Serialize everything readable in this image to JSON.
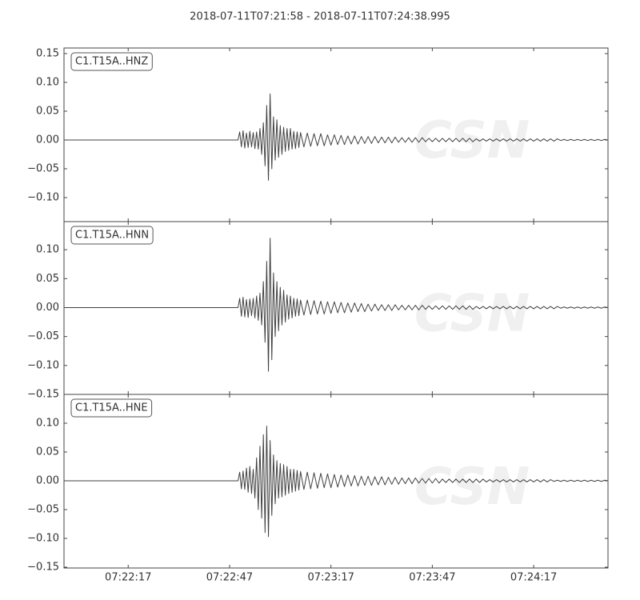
{
  "title": "2018-07-11T07:21:58  -  2018-07-11T07:24:38.995",
  "watermark": "CSN",
  "chart_data": [
    {
      "type": "line",
      "series": [
        {
          "name": "C1.T15A..HNZ",
          "color": "#404040",
          "values": [
            0,
            0,
            0.014,
            -0.012,
            0.016,
            -0.014,
            0.012,
            -0.013,
            0.015,
            -0.012,
            0.013,
            -0.015,
            0.014,
            -0.016,
            0.02,
            -0.025,
            0.03,
            -0.045,
            0.06,
            -0.07,
            0.08,
            -0.05,
            0.04,
            -0.035,
            0.035,
            -0.03,
            0.025,
            -0.025,
            0.022,
            -0.02,
            0.02,
            -0.018,
            0.02,
            -0.016,
            0.015,
            -0.015,
            0.014,
            -0.013,
            0.013,
            -0.012,
            0.012,
            -0.011,
            0.011,
            -0.01,
            0.011,
            -0.01,
            0.009,
            -0.009,
            0.009,
            -0.008,
            0.008,
            -0.008,
            0.007,
            -0.007,
            0.007,
            -0.007,
            0.006,
            -0.006,
            0.006,
            -0.006,
            0.006,
            -0.005,
            0.005,
            -0.005,
            0.005,
            -0.005,
            0.005,
            -0.004,
            0.004,
            -0.004,
            0.004,
            -0.004,
            0.004,
            -0.004,
            0.004,
            -0.003,
            0.003,
            -0.003,
            0.003,
            -0.003,
            0.003,
            -0.003,
            0.003,
            -0.003,
            0.003,
            -0.003,
            0.003,
            -0.003,
            0.003,
            -0.003,
            0.002,
            -0.002,
            0.002,
            -0.002,
            0.002,
            -0.002,
            0.002,
            -0.002,
            0.002,
            -0.002,
            0.002,
            -0.002,
            0.002,
            -0.002,
            0.002,
            -0.002,
            0.002,
            -0.002,
            0.002,
            -0.002,
            0.002,
            -0.002,
            0.002,
            -0.002,
            0.002,
            -0.001,
            0.001,
            -0.001,
            0.001,
            -0.001,
            0.001,
            -0.001,
            0.001,
            -0.001,
            0.001,
            -0.001,
            0.001,
            -0.001,
            0.001,
            0
          ]
        }
      ],
      "x": [
        0,
        51.5,
        52,
        52.5,
        53,
        53.5,
        54,
        54.5,
        55,
        55.5,
        56,
        56.5,
        57,
        57.5,
        58,
        58.5,
        59,
        59.5,
        60,
        60.5,
        61,
        61.5,
        62,
        62.5,
        63,
        63.5,
        64,
        64.5,
        65,
        65.5,
        66,
        66.5,
        67,
        67.5,
        68,
        68.5,
        69,
        69.5,
        70,
        71,
        72,
        73,
        74,
        75,
        76,
        77,
        78,
        79,
        80,
        81,
        82,
        83,
        84,
        85,
        86,
        87,
        88,
        89,
        90,
        91,
        92,
        93,
        94,
        95,
        96,
        97,
        98,
        99,
        100,
        101,
        102,
        103,
        104,
        105,
        106,
        107,
        108,
        109,
        110,
        111,
        112,
        113,
        114,
        115,
        116,
        117,
        118,
        119,
        120,
        121,
        122,
        123,
        124,
        125,
        126,
        127,
        128,
        129,
        130,
        131,
        132,
        133,
        134,
        135,
        136,
        137,
        138,
        139,
        140,
        141,
        142,
        143,
        144,
        145,
        146,
        147,
        148,
        149,
        150,
        151,
        152,
        153,
        154,
        155,
        156,
        157,
        158,
        159,
        160,
        160.995
      ],
      "xlim": [
        0,
        160.995
      ],
      "ylim": [
        -0.1417,
        0.1597
      ],
      "yticks": [
        {
          "value": 0.15,
          "label": "0.15"
        },
        {
          "value": 0.1,
          "label": "0.10"
        },
        {
          "value": 0.05,
          "label": "0.05"
        },
        {
          "value": 0,
          "label": "0.00"
        },
        {
          "value": -0.05,
          "label": "−0.05"
        },
        {
          "value": -0.1,
          "label": "−0.10"
        }
      ]
    },
    {
      "type": "line",
      "series": [
        {
          "name": "C1.T15A..HNN",
          "color": "#404040",
          "values": [
            0,
            0,
            0.016,
            -0.015,
            0.018,
            -0.016,
            0.014,
            -0.017,
            0.015,
            -0.014,
            0.016,
            -0.018,
            0.02,
            -0.022,
            0.025,
            -0.03,
            0.045,
            -0.06,
            0.08,
            -0.11,
            0.12,
            -0.09,
            0.06,
            -0.05,
            0.045,
            -0.04,
            0.035,
            -0.03,
            0.03,
            -0.025,
            0.022,
            -0.02,
            0.02,
            -0.018,
            0.016,
            -0.015,
            0.015,
            -0.014,
            0.013,
            -0.013,
            0.013,
            -0.012,
            0.012,
            -0.011,
            0.011,
            -0.011,
            0.01,
            -0.01,
            0.01,
            -0.009,
            0.009,
            -0.009,
            0.008,
            -0.008,
            0.008,
            -0.007,
            0.007,
            -0.007,
            0.006,
            -0.006,
            0.006,
            -0.005,
            0.005,
            -0.005,
            0.005,
            -0.005,
            0.005,
            -0.004,
            0.004,
            -0.004,
            0.004,
            -0.004,
            0.004,
            -0.004,
            0.004,
            -0.003,
            0.003,
            -0.003,
            0.003,
            -0.003,
            0.003,
            -0.003,
            0.003,
            -0.003,
            0.003,
            -0.003,
            0.003,
            -0.003,
            0.003,
            -0.003,
            0.002,
            -0.002,
            0.002,
            -0.002,
            0.002,
            -0.002,
            0.002,
            -0.002,
            0.002,
            -0.002,
            0.002,
            -0.002,
            0.002,
            -0.002,
            0.002,
            -0.002,
            0.002,
            -0.002,
            0.002,
            -0.002,
            0.002,
            -0.002,
            0.002,
            -0.002,
            0.002,
            -0.001,
            0.001,
            -0.001,
            0.001,
            -0.001,
            0.001,
            -0.001,
            0.001,
            -0.001,
            0.001,
            -0.001,
            0.001,
            -0.001,
            0.001,
            0
          ]
        }
      ],
      "x": [
        0,
        51.5,
        52,
        52.5,
        53,
        53.5,
        54,
        54.5,
        55,
        55.5,
        56,
        56.5,
        57,
        57.5,
        58,
        58.5,
        59,
        59.5,
        60,
        60.5,
        61,
        61.5,
        62,
        62.5,
        63,
        63.5,
        64,
        64.5,
        65,
        65.5,
        66,
        66.5,
        67,
        67.5,
        68,
        68.5,
        69,
        69.5,
        70,
        71,
        72,
        73,
        74,
        75,
        76,
        77,
        78,
        79,
        80,
        81,
        82,
        83,
        84,
        85,
        86,
        87,
        88,
        89,
        90,
        91,
        92,
        93,
        94,
        95,
        96,
        97,
        98,
        99,
        100,
        101,
        102,
        103,
        104,
        105,
        106,
        107,
        108,
        109,
        110,
        111,
        112,
        113,
        114,
        115,
        116,
        117,
        118,
        119,
        120,
        121,
        122,
        123,
        124,
        125,
        126,
        127,
        128,
        129,
        130,
        131,
        132,
        133,
        134,
        135,
        136,
        137,
        138,
        139,
        140,
        141,
        142,
        143,
        144,
        145,
        146,
        147,
        148,
        149,
        150,
        151,
        152,
        153,
        154,
        155,
        156,
        157,
        158,
        159,
        160,
        160.995
      ],
      "xlim": [
        0,
        160.995
      ],
      "ylim": [
        -0.15,
        0.1486
      ],
      "yticks": [
        {
          "value": 0.1,
          "label": "0.10"
        },
        {
          "value": 0.05,
          "label": "0.05"
        },
        {
          "value": 0,
          "label": "0.00"
        },
        {
          "value": -0.05,
          "label": "−0.05"
        },
        {
          "value": -0.1,
          "label": "−0.10"
        },
        {
          "value": -0.15,
          "label": "−0.15"
        }
      ]
    },
    {
      "type": "line",
      "series": [
        {
          "name": "C1.T15A..HNE",
          "color": "#404040",
          "values": [
            0,
            0,
            0.015,
            -0.014,
            0.017,
            -0.015,
            0.022,
            -0.02,
            0.025,
            -0.022,
            0.02,
            -0.03,
            0.04,
            -0.05,
            0.06,
            -0.065,
            0.08,
            -0.09,
            0.095,
            -0.097,
            0.07,
            -0.06,
            0.045,
            -0.04,
            0.035,
            -0.03,
            0.03,
            -0.028,
            0.028,
            -0.025,
            0.025,
            -0.022,
            0.02,
            -0.02,
            0.02,
            -0.018,
            0.018,
            -0.016,
            0.016,
            -0.015,
            0.015,
            -0.014,
            0.014,
            -0.013,
            0.013,
            -0.012,
            0.012,
            -0.012,
            0.011,
            -0.011,
            0.01,
            -0.01,
            0.01,
            -0.009,
            0.009,
            -0.009,
            0.008,
            -0.008,
            0.008,
            -0.008,
            0.007,
            -0.007,
            0.007,
            -0.007,
            0.006,
            -0.006,
            0.006,
            -0.006,
            0.005,
            -0.005,
            0.005,
            -0.005,
            0.005,
            -0.004,
            0.004,
            -0.004,
            0.004,
            -0.004,
            0.004,
            -0.004,
            0.003,
            -0.003,
            0.003,
            -0.003,
            0.003,
            -0.003,
            0.003,
            -0.003,
            0.003,
            -0.003,
            0.003,
            -0.003,
            0.003,
            -0.002,
            0.002,
            -0.002,
            0.002,
            -0.002,
            0.002,
            -0.002,
            0.002,
            -0.002,
            0.002,
            -0.002,
            0.002,
            -0.002,
            0.002,
            -0.002,
            0.002,
            -0.002,
            0.002,
            -0.002,
            0.002,
            -0.001,
            0.001,
            -0.001,
            0.001,
            -0.001,
            0.001,
            -0.001,
            0.001,
            -0.001,
            0.001,
            -0.001,
            0.001,
            -0.001,
            0.001,
            -0.001,
            0.001,
            0
          ]
        }
      ],
      "x": [
        0,
        51.5,
        52,
        52.5,
        53,
        53.5,
        54,
        54.5,
        55,
        55.5,
        56,
        56.5,
        57,
        57.5,
        58,
        58.5,
        59,
        59.5,
        60,
        60.5,
        61,
        61.5,
        62,
        62.5,
        63,
        63.5,
        64,
        64.5,
        65,
        65.5,
        66,
        66.5,
        67,
        67.5,
        68,
        68.5,
        69,
        69.5,
        70,
        71,
        72,
        73,
        74,
        75,
        76,
        77,
        78,
        79,
        80,
        81,
        82,
        83,
        84,
        85,
        86,
        87,
        88,
        89,
        90,
        91,
        92,
        93,
        94,
        95,
        96,
        97,
        98,
        99,
        100,
        101,
        102,
        103,
        104,
        105,
        106,
        107,
        108,
        109,
        110,
        111,
        112,
        113,
        114,
        115,
        116,
        117,
        118,
        119,
        120,
        121,
        122,
        123,
        124,
        125,
        126,
        127,
        128,
        129,
        130,
        131,
        132,
        133,
        134,
        135,
        136,
        137,
        138,
        139,
        140,
        141,
        142,
        143,
        144,
        145,
        146,
        147,
        148,
        149,
        150,
        151,
        152,
        153,
        154,
        155,
        156,
        157,
        158,
        159,
        160,
        160.995
      ],
      "xlim": [
        0,
        160.995
      ],
      "ylim": [
        -0.1514,
        0.15
      ],
      "yticks": [
        {
          "value": 0.1,
          "label": "0.10"
        },
        {
          "value": 0.05,
          "label": "0.05"
        },
        {
          "value": 0,
          "label": "0.00"
        },
        {
          "value": -0.05,
          "label": "−0.05"
        },
        {
          "value": -0.1,
          "label": "−0.10"
        },
        {
          "value": -0.15,
          "label": "−0.15"
        }
      ],
      "xticks": [
        {
          "value": 19,
          "label": "07:22:17"
        },
        {
          "value": 49,
          "label": "07:22:47"
        },
        {
          "value": 79,
          "label": "07:23:17"
        },
        {
          "value": 109,
          "label": "07:23:47"
        },
        {
          "value": 139,
          "label": "07:24:17"
        }
      ]
    }
  ]
}
